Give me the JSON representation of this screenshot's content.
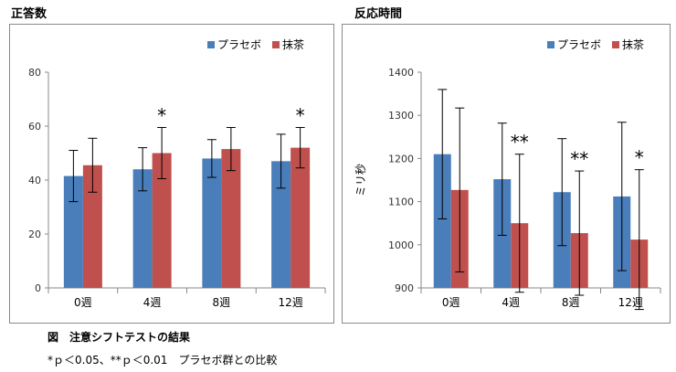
{
  "caption": {
    "title": "図　注意シフトテストの結果",
    "note": "*ｐ＜0.05、**ｐ＜0.01　プラセボ群との比較"
  },
  "chart_data": [
    {
      "type": "bar",
      "title": "正答数",
      "ylabel": "",
      "categories": [
        "0週",
        "4週",
        "8週",
        "12週"
      ],
      "ylim": [
        0,
        80
      ],
      "yticks": [
        0,
        20,
        40,
        60,
        80
      ],
      "legend": "top-right",
      "series": [
        {
          "name": "プラセボ",
          "color": "#4a7ebb",
          "values": [
            41.5,
            44,
            48,
            47
          ],
          "error": [
            9.5,
            8,
            7,
            10
          ]
        },
        {
          "name": "抹茶",
          "color": "#c0504d",
          "values": [
            45.5,
            50,
            51.5,
            52
          ],
          "error": [
            10,
            9.5,
            8,
            7.5
          ]
        }
      ],
      "annotations": [
        {
          "category": "4週",
          "text": "*"
        },
        {
          "category": "12週",
          "text": "*"
        }
      ]
    },
    {
      "type": "bar",
      "title": "反応時間",
      "ylabel": "ミリ秒",
      "categories": [
        "0週",
        "4週",
        "8週",
        "12週"
      ],
      "ylim": [
        900,
        1400
      ],
      "yticks": [
        900,
        1000,
        1100,
        1200,
        1300,
        1400
      ],
      "legend": "top-right",
      "series": [
        {
          "name": "プラセボ",
          "color": "#4a7ebb",
          "values": [
            1210,
            1152,
            1122,
            1112
          ],
          "error": [
            150,
            130,
            124,
            172
          ]
        },
        {
          "name": "抹茶",
          "color": "#c0504d",
          "values": [
            1127,
            1050,
            1027,
            1012
          ],
          "error": [
            190,
            160,
            144,
            162
          ]
        }
      ],
      "annotations": [
        {
          "category": "4週",
          "text": "**"
        },
        {
          "category": "8週",
          "text": "**"
        },
        {
          "category": "12週",
          "text": "*"
        }
      ]
    }
  ]
}
